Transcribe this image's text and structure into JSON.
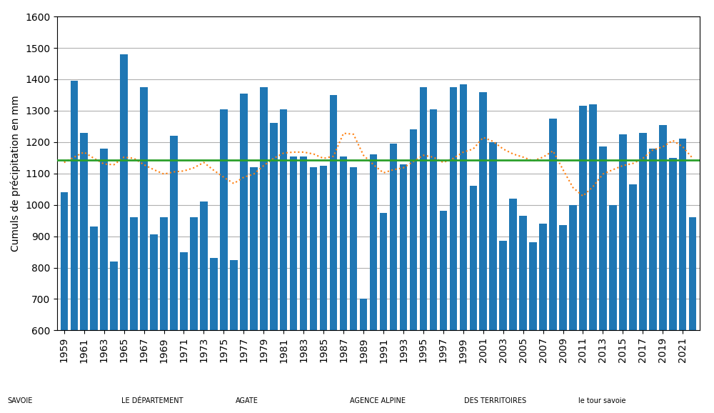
{
  "chart_data": {
    "type": "bar",
    "ylabel": "Cumuls de précipitation en mm",
    "categories": [
      "1959",
      null,
      "1961",
      null,
      "1963",
      null,
      "1965",
      null,
      "1967",
      null,
      "1969",
      null,
      "1971",
      null,
      "1973",
      null,
      "1975",
      null,
      "1977",
      null,
      "1979",
      null,
      "1981",
      null,
      "1983",
      null,
      "1985",
      null,
      "1987",
      null,
      "1989",
      null,
      "1991",
      null,
      "1993",
      null,
      "1995",
      null,
      "1997",
      null,
      "1999",
      null,
      "2001",
      null,
      "2003",
      null,
      "2005",
      null,
      "2007",
      null,
      "2009",
      null,
      "2011",
      null,
      "2013",
      null,
      "2015",
      null,
      "2017",
      null,
      "2019",
      null,
      "2021",
      null
    ],
    "series": [
      {
        "type": "bar",
        "values": [
          1040,
          1395,
          1230,
          930,
          1180,
          820,
          1480,
          960,
          1375,
          905,
          960,
          1220,
          850,
          960,
          1010,
          830,
          1305,
          825,
          1355,
          1120,
          1375,
          1260,
          1305,
          1155,
          1155,
          1120,
          1125,
          1350,
          1155,
          1120,
          700,
          1160,
          975,
          1195,
          1130,
          1240,
          1375,
          1305,
          980,
          1375,
          1385,
          1060,
          1360,
          1200,
          885,
          1020,
          965,
          880,
          940,
          1275,
          935,
          1000,
          1315,
          1320,
          1185,
          1000,
          1225,
          1065,
          1230,
          1180,
          1255,
          1150,
          1210,
          960
        ]
      },
      {
        "type": "line",
        "line_style": "dotted",
        "values": [
          1135,
          1152,
          1168,
          1148,
          1130,
          1128,
          1152,
          1148,
          1128,
          1112,
          1098,
          1105,
          1108,
          1118,
          1135,
          1110,
          1088,
          1068,
          1088,
          1098,
          1125,
          1148,
          1165,
          1168,
          1168,
          1162,
          1148,
          1155,
          1228,
          1225,
          1158,
          1128,
          1102,
          1112,
          1118,
          1138,
          1158,
          1152,
          1135,
          1148,
          1168,
          1178,
          1215,
          1202,
          1178,
          1162,
          1152,
          1140,
          1152,
          1172,
          1112,
          1055,
          1028,
          1058,
          1098,
          1112,
          1125,
          1132,
          1148,
          1175,
          1185,
          1205,
          1185,
          1148
        ]
      }
    ],
    "mean": 1143,
    "ylim": [
      600,
      1600
    ],
    "yticks": [
      600,
      700,
      800,
      900,
      1000,
      1100,
      1200,
      1300,
      1400,
      1500,
      1600
    ],
    "grid": true,
    "annotations": [
      "SAVOIE",
      "LE DÉPARTEMENT",
      "AGATE",
      "AGENCE ALPINE",
      "DES TERRITOIRES",
      "le tour savoie"
    ]
  }
}
